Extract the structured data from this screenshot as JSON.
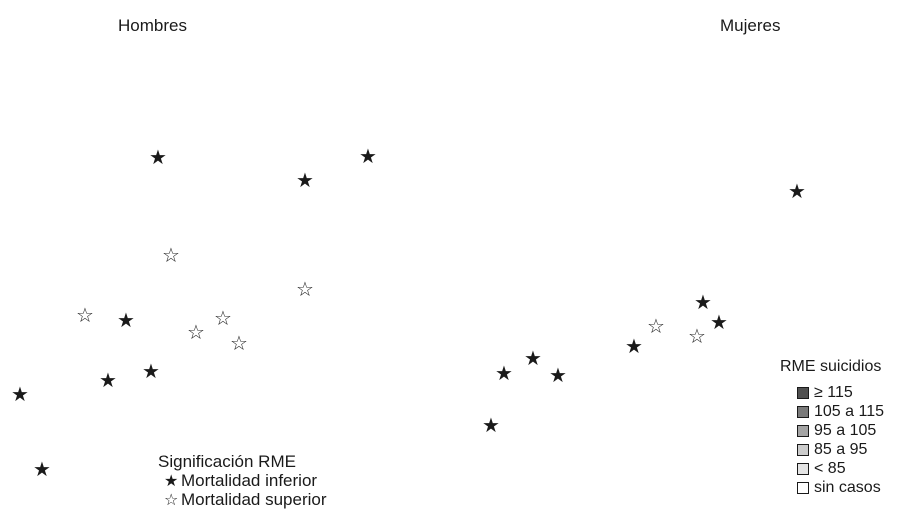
{
  "panels": {
    "men_title": "Hombres",
    "women_title": "Mujeres"
  },
  "legend_significance": {
    "title": "Significación RME",
    "items": [
      {
        "label": "Mortalidad inferior",
        "glyph": "★",
        "kind": "inferior"
      },
      {
        "label": "Mortalidad superior",
        "glyph": "☆",
        "kind": "superior"
      }
    ]
  },
  "legend_rme": {
    "title": "RME suicidios",
    "items": [
      {
        "label": "≥ 115",
        "color": "#505050"
      },
      {
        "label": "105 a 115",
        "color": "#7a7a7a"
      },
      {
        "label": "95 a 105",
        "color": "#a4a4a4"
      },
      {
        "label": "85 a 95",
        "color": "#cbcbcb"
      },
      {
        "label": "< 85",
        "color": "#e4e4e4"
      },
      {
        "label": "sin casos",
        "color": "#ffffff"
      }
    ]
  },
  "markers": {
    "men": [
      "inferior",
      "inferior",
      "inferior",
      "superior",
      "superior",
      "inferior",
      "superior",
      "superior",
      "superior",
      "superior",
      "inferior",
      "inferior",
      "inferior",
      "inferior"
    ],
    "women": [
      "inferior",
      "inferior",
      "superior",
      "inferior",
      "inferior",
      "superior",
      "inferior",
      "inferior",
      "inferior",
      "inferior"
    ]
  },
  "colors": {
    "marker": "#1a1a1a"
  }
}
